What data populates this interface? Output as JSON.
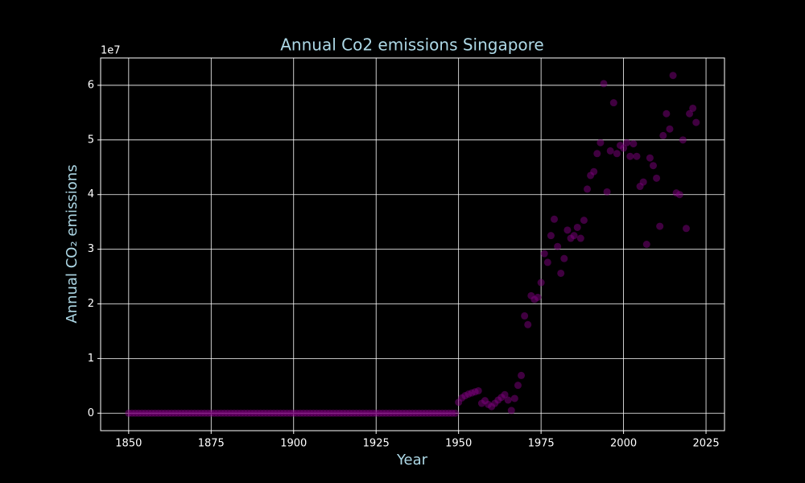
{
  "chart_data": {
    "type": "scatter",
    "title": "Annual Co2 emissions Singapore",
    "x_label": "Year",
    "y_label": "Annual CO₂ emissions",
    "y_offset_label": "1e7",
    "color": "#800080",
    "grid": true,
    "xlim": [
      1841.5,
      2030.6
    ],
    "xticks": [
      1850,
      1875,
      1900,
      1925,
      1950,
      1975,
      2000,
      2025
    ],
    "ylim": [
      -3200000,
      65000000
    ],
    "yticks": [
      0,
      {
        "value": 10000000,
        "label": "1"
      },
      {
        "value": 20000000,
        "label": "2"
      },
      {
        "value": 30000000,
        "label": "3"
      },
      {
        "value": 40000000,
        "label": "4"
      },
      {
        "value": 50000000,
        "label": "5"
      },
      {
        "value": 60000000,
        "label": "6"
      }
    ],
    "x": [
      1850,
      1851,
      1852,
      1853,
      1854,
      1855,
      1856,
      1857,
      1858,
      1859,
      1860,
      1861,
      1862,
      1863,
      1864,
      1865,
      1866,
      1867,
      1868,
      1869,
      1870,
      1871,
      1872,
      1873,
      1874,
      1875,
      1876,
      1877,
      1878,
      1879,
      1880,
      1881,
      1882,
      1883,
      1884,
      1885,
      1886,
      1887,
      1888,
      1889,
      1890,
      1891,
      1892,
      1893,
      1894,
      1895,
      1896,
      1897,
      1898,
      1899,
      1900,
      1901,
      1902,
      1903,
      1904,
      1905,
      1906,
      1907,
      1908,
      1909,
      1910,
      1911,
      1912,
      1913,
      1914,
      1915,
      1916,
      1917,
      1918,
      1919,
      1920,
      1921,
      1922,
      1923,
      1924,
      1925,
      1926,
      1927,
      1928,
      1929,
      1930,
      1931,
      1932,
      1933,
      1934,
      1935,
      1936,
      1937,
      1938,
      1939,
      1940,
      1941,
      1942,
      1943,
      1944,
      1945,
      1946,
      1947,
      1948,
      1949,
      1950,
      1951,
      1952,
      1953,
      1954,
      1955,
      1956,
      1957,
      1958,
      1959,
      1960,
      1961,
      1962,
      1963,
      1964,
      1965,
      1966,
      1967,
      1968,
      1969,
      1970,
      1971,
      1972,
      1973,
      1974,
      1975,
      1976,
      1977,
      1978,
      1979,
      1980,
      1981,
      1982,
      1983,
      1984,
      1985,
      1986,
      1987,
      1988,
      1989,
      1990,
      1991,
      1992,
      1993,
      1994,
      1995,
      1996,
      1997,
      1998,
      1999,
      2000,
      2001,
      2002,
      2003,
      2004,
      2005,
      2006,
      2007,
      2008,
      2009,
      2010,
      2011,
      2012,
      2013,
      2014,
      2015,
      2016,
      2017,
      2018,
      2019,
      2020,
      2021,
      2022
    ],
    "values": [
      0,
      0,
      0,
      0,
      0,
      0,
      0,
      0,
      0,
      0,
      0,
      0,
      0,
      0,
      0,
      0,
      0,
      0,
      0,
      0,
      0,
      0,
      0,
      0,
      0,
      0,
      0,
      0,
      0,
      0,
      0,
      0,
      0,
      0,
      0,
      0,
      0,
      0,
      0,
      0,
      0,
      0,
      0,
      0,
      0,
      0,
      0,
      0,
      0,
      0,
      0,
      0,
      0,
      0,
      0,
      0,
      0,
      0,
      0,
      0,
      0,
      0,
      0,
      0,
      0,
      0,
      0,
      0,
      0,
      0,
      0,
      0,
      0,
      0,
      0,
      0,
      0,
      0,
      0,
      0,
      0,
      0,
      0,
      0,
      0,
      0,
      0,
      0,
      0,
      0,
      0,
      0,
      0,
      0,
      0,
      0,
      0,
      0,
      0,
      0,
      2000000,
      2800000,
      3200000,
      3500000,
      3700000,
      3900000,
      4100000,
      1800000,
      2300000,
      1600000,
      1200000,
      1800000,
      2400000,
      2900000,
      3400000,
      2400000,
      500000,
      2700000,
      5100000,
      6900000,
      17800000,
      16200000,
      21500000,
      20800000,
      21200000,
      23900000,
      29200000,
      27600000,
      32500000,
      35500000,
      30500000,
      25600000,
      28300000,
      33500000,
      32000000,
      32500000,
      34000000,
      32000000,
      35300000,
      41000000,
      43500000,
      44200000,
      47500000,
      49500000,
      60300000,
      40500000,
      48000000,
      56800000,
      47500000,
      49000000,
      48500000,
      49500000,
      47000000,
      49300000,
      47000000,
      41500000,
      42300000,
      30900000,
      46700000,
      45300000,
      43000000,
      34200000,
      50800000,
      54800000,
      52000000,
      61800000,
      40300000,
      40000000,
      50000000,
      33800000,
      54800000,
      55800000,
      53200000
    ]
  }
}
